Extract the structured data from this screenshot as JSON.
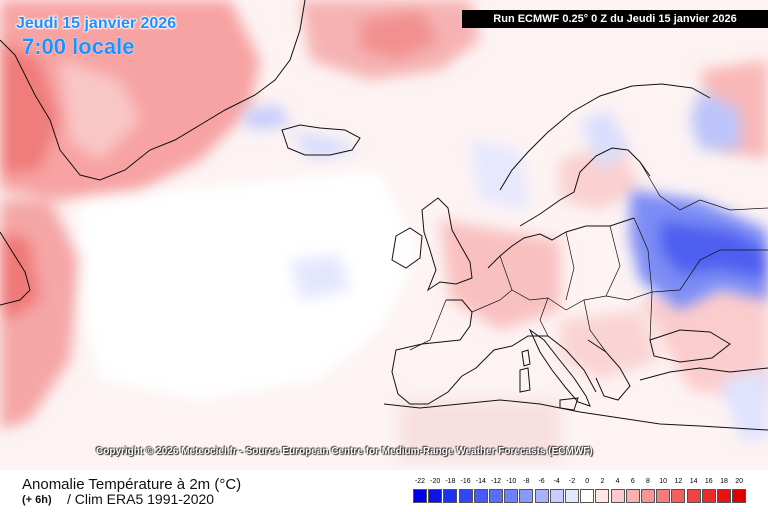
{
  "header": {
    "date": "Jeudi 15 janvier 2026",
    "time": "7:00 locale",
    "run": "Run ECMWF 0.25° 0 Z du Jeudi 15 janvier 2026"
  },
  "copyright": "Copyright © 2026 Meteociel.fr - Source European Centre for Medium-Range Weather Forecasts (ECMWF)",
  "footer": {
    "title": "Anomalie Température à 2m (°C)",
    "lead": "(+ 6h)",
    "clim": "/ Clim ERA5 1991-2020"
  },
  "legend": {
    "labels": [
      "-22",
      "-20",
      "-18",
      "-16",
      "-14",
      "-12",
      "-10",
      "-8",
      "-6",
      "-4",
      "-2",
      "0",
      "2",
      "4",
      "6",
      "8",
      "10",
      "12",
      "14",
      "16",
      "18",
      "20"
    ],
    "colors": [
      "#0000e6",
      "#0a14ef",
      "#1e32f5",
      "#3246f8",
      "#465af8",
      "#5a6ef8",
      "#6e82fa",
      "#8a98fb",
      "#a8b2fc",
      "#c8cefd",
      "#e4e7fe",
      "#ffffff",
      "#fde6e6",
      "#fbcaca",
      "#f9b0b0",
      "#f79696",
      "#f57c7c",
      "#f25f5f",
      "#ee4444",
      "#ea2a2a",
      "#e41414",
      "#e00000"
    ]
  },
  "colors": {
    "header_text": "#1f8fff",
    "run_box": "#000000",
    "land_outline": "#111111"
  }
}
